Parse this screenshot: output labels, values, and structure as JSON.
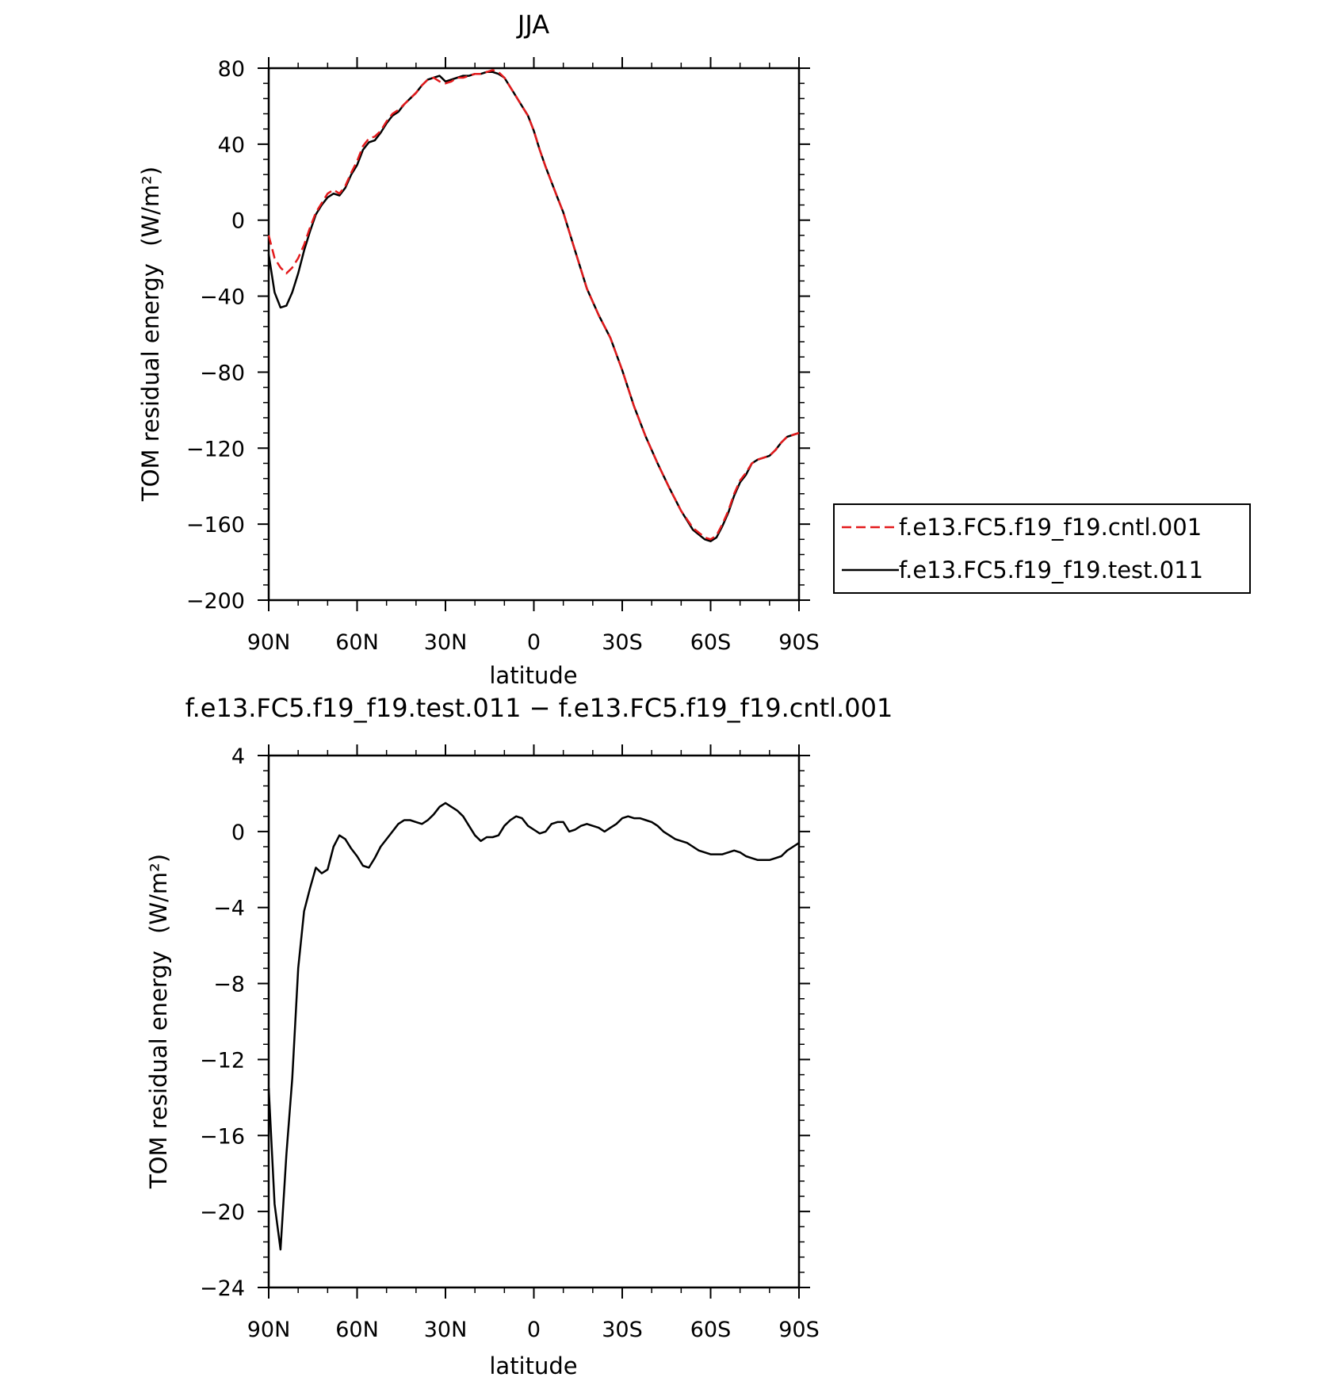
{
  "chart_data": [
    {
      "type": "line",
      "title": "JJA",
      "xlabel": "latitude",
      "ylabel": "TOM residual energy",
      "ylabel_unit": "(W/m²)",
      "xlim": [
        90,
        -90
      ],
      "ylim": [
        -200,
        80
      ],
      "xticks": [
        90,
        60,
        30,
        0,
        -30,
        -60,
        -90
      ],
      "xtick_labels": [
        "90N",
        "60N",
        "30N",
        "0",
        "30S",
        "60S",
        "90S"
      ],
      "yticks": [
        80,
        40,
        0,
        -40,
        -80,
        -120,
        -160,
        -200
      ],
      "ytick_labels": [
        "80",
        "40",
        "0",
        "−40",
        "−80",
        "−120",
        "−160",
        "−200"
      ],
      "legend_position": "right",
      "series": [
        {
          "name": "f.e13.FC5.f19_f19.cntl.001",
          "color": "#e31a1c",
          "dash": "dashed",
          "x": [
            90,
            88,
            86,
            84,
            82,
            80,
            78,
            76,
            74,
            72,
            70,
            68,
            66,
            64,
            62,
            60,
            58,
            56,
            54,
            52,
            50,
            48,
            46,
            44,
            42,
            40,
            38,
            36,
            34,
            32,
            30,
            28,
            26,
            24,
            22,
            20,
            18,
            16,
            14,
            12,
            10,
            8,
            6,
            4,
            2,
            0,
            -2,
            -4,
            -6,
            -8,
            -10,
            -14,
            -18,
            -22,
            -26,
            -30,
            -34,
            -38,
            -42,
            -46,
            -50,
            -54,
            -58,
            -60,
            -62,
            -64,
            -66,
            -68,
            -70,
            -72,
            -74,
            -76,
            -78,
            -80,
            -82,
            -84,
            -86,
            -88,
            -90
          ],
          "y": [
            -8,
            -20,
            -25,
            -28,
            -25,
            -20,
            -13,
            -4,
            4,
            9,
            14,
            16,
            14,
            18,
            25,
            31,
            39,
            43,
            44,
            47,
            52,
            56,
            58,
            61,
            64,
            67,
            71,
            74,
            75,
            73,
            72,
            73,
            75,
            75,
            76,
            77,
            77,
            78,
            79,
            78,
            75,
            70,
            65,
            60,
            55,
            47,
            37,
            28,
            20,
            12,
            4,
            -16,
            -36,
            -50,
            -62,
            -79,
            -98,
            -114,
            -128,
            -141,
            -153,
            -162,
            -167,
            -168,
            -166,
            -160,
            -153,
            -144,
            -137,
            -133,
            -128,
            -126,
            -125,
            -124,
            -121,
            -117,
            -114,
            -113,
            -112
          ]
        },
        {
          "name": "f.e13.FC5.f19_f19.test.011",
          "color": "#000000",
          "dash": "solid",
          "x": [
            90,
            88,
            86,
            84,
            82,
            80,
            78,
            76,
            74,
            72,
            70,
            68,
            66,
            64,
            62,
            60,
            58,
            56,
            54,
            52,
            50,
            48,
            46,
            44,
            42,
            40,
            38,
            36,
            34,
            32,
            30,
            28,
            26,
            24,
            22,
            20,
            18,
            16,
            14,
            12,
            10,
            8,
            6,
            4,
            2,
            0,
            -2,
            -4,
            -6,
            -8,
            -10,
            -14,
            -18,
            -22,
            -26,
            -30,
            -34,
            -38,
            -42,
            -46,
            -50,
            -54,
            -58,
            -60,
            -62,
            -64,
            -66,
            -68,
            -70,
            -72,
            -74,
            -76,
            -78,
            -80,
            -82,
            -84,
            -86,
            -88,
            -90
          ],
          "y": [
            -18,
            -38,
            -46,
            -45,
            -38,
            -28,
            -16,
            -6,
            3,
            8,
            12,
            14,
            13,
            17,
            24,
            29,
            37,
            41,
            42,
            46,
            51,
            55,
            57,
            61,
            64,
            67,
            71,
            74,
            75,
            76,
            73,
            74,
            75,
            76,
            76,
            77,
            77,
            78,
            78,
            77,
            75,
            70,
            65,
            60,
            55,
            47,
            37,
            28,
            20,
            12,
            4,
            -16,
            -36,
            -50,
            -62,
            -79,
            -98,
            -114,
            -128,
            -141,
            -153,
            -163,
            -168,
            -169,
            -167,
            -161,
            -154,
            -145,
            -138,
            -134,
            -128,
            -126,
            -125,
            -124,
            -121,
            -117,
            -114,
            -113,
            -112
          ]
        }
      ]
    },
    {
      "type": "line",
      "title": "f.e13.FC5.f19_f19.test.011 − f.e13.FC5.f19_f19.cntl.001",
      "xlabel": "latitude",
      "ylabel": "TOM residual energy",
      "ylabel_unit": "(W/m²)",
      "xlim": [
        90,
        -90
      ],
      "ylim": [
        -24,
        4
      ],
      "xticks": [
        90,
        60,
        30,
        0,
        -30,
        -60,
        -90
      ],
      "xtick_labels": [
        "90N",
        "60N",
        "30N",
        "0",
        "30S",
        "60S",
        "90S"
      ],
      "yticks": [
        4,
        0,
        -4,
        -8,
        -12,
        -16,
        -20,
        -24
      ],
      "ytick_labels": [
        "4",
        "0",
        "−4",
        "−8",
        "−12",
        "−16",
        "−20",
        "−24"
      ],
      "series": [
        {
          "color": "#000000",
          "dash": "solid",
          "x": [
            90,
            88,
            86,
            84,
            82,
            80,
            78,
            76,
            74,
            72,
            70,
            68,
            66,
            64,
            62,
            60,
            58,
            56,
            54,
            52,
            50,
            48,
            46,
            44,
            42,
            40,
            38,
            36,
            34,
            32,
            30,
            28,
            26,
            24,
            22,
            20,
            18,
            16,
            14,
            12,
            10,
            8,
            6,
            4,
            2,
            0,
            -2,
            -4,
            -6,
            -8,
            -10,
            -12,
            -14,
            -16,
            -18,
            -20,
            -22,
            -24,
            -26,
            -28,
            -30,
            -32,
            -34,
            -36,
            -38,
            -40,
            -42,
            -44,
            -46,
            -48,
            -50,
            -52,
            -54,
            -56,
            -58,
            -60,
            -62,
            -64,
            -66,
            -68,
            -70,
            -72,
            -74,
            -76,
            -78,
            -80,
            -82,
            -84,
            -86,
            -88,
            -90
          ],
          "y": [
            -13.5,
            -19.6,
            -22.0,
            -17.0,
            -13.0,
            -7.2,
            -4.2,
            -3.0,
            -1.9,
            -2.2,
            -2.0,
            -0.8,
            -0.2,
            -0.4,
            -0.9,
            -1.3,
            -1.8,
            -1.9,
            -1.4,
            -0.8,
            -0.4,
            0.0,
            0.4,
            0.6,
            0.6,
            0.5,
            0.4,
            0.6,
            0.9,
            1.3,
            1.5,
            1.3,
            1.1,
            0.8,
            0.3,
            -0.2,
            -0.5,
            -0.3,
            -0.3,
            -0.2,
            0.3,
            0.6,
            0.8,
            0.7,
            0.3,
            0.1,
            -0.1,
            0.0,
            0.4,
            0.5,
            0.5,
            0.0,
            0.1,
            0.3,
            0.4,
            0.3,
            0.2,
            0.0,
            0.2,
            0.4,
            0.7,
            0.8,
            0.7,
            0.7,
            0.6,
            0.5,
            0.3,
            0.0,
            -0.2,
            -0.4,
            -0.5,
            -0.6,
            -0.8,
            -1.0,
            -1.1,
            -1.2,
            -1.2,
            -1.2,
            -1.1,
            -1.0,
            -1.1,
            -1.3,
            -1.4,
            -1.5,
            -1.5,
            -1.5,
            -1.4,
            -1.3,
            -1.0,
            -0.8,
            -0.6
          ]
        }
      ]
    }
  ]
}
